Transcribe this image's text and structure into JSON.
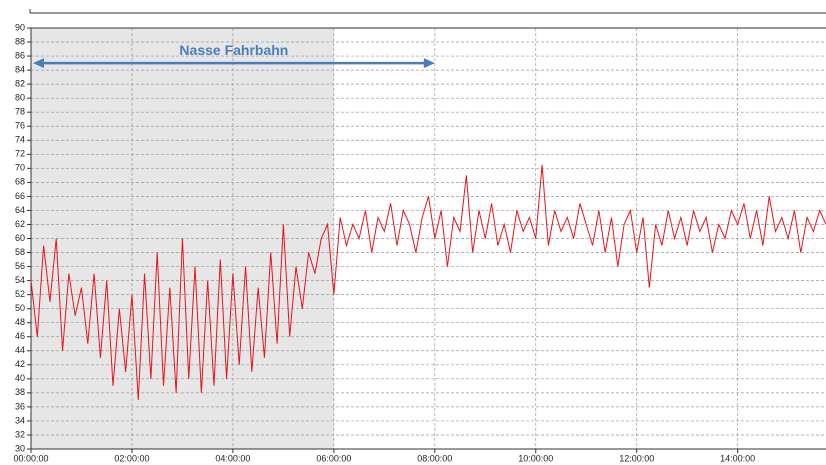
{
  "chart_data": {
    "type": "line",
    "x": [
      0,
      0.125,
      0.25,
      0.375,
      0.5,
      0.625,
      0.75,
      0.875,
      1,
      1.125,
      1.25,
      1.375,
      1.5,
      1.625,
      1.75,
      1.875,
      2,
      2.125,
      2.25,
      2.375,
      2.5,
      2.625,
      2.75,
      2.875,
      3,
      3.125,
      3.25,
      3.375,
      3.5,
      3.625,
      3.75,
      3.875,
      4,
      4.125,
      4.25,
      4.375,
      4.5,
      4.625,
      4.75,
      4.875,
      5,
      5.125,
      5.25,
      5.375,
      5.5,
      5.625,
      5.75,
      5.875,
      6,
      6.125,
      6.25,
      6.375,
      6.5,
      6.625,
      6.75,
      6.875,
      7,
      7.125,
      7.25,
      7.375,
      7.5,
      7.625,
      7.75,
      7.875,
      8,
      8.125,
      8.25,
      8.375,
      8.5,
      8.625,
      8.75,
      8.875,
      9,
      9.125,
      9.25,
      9.375,
      9.5,
      9.625,
      9.75,
      9.875,
      10,
      10.125,
      10.25,
      10.375,
      10.5,
      10.625,
      10.75,
      10.875,
      11,
      11.125,
      11.25,
      11.375,
      11.5,
      11.625,
      11.75,
      11.875,
      12,
      12.125,
      12.25,
      12.375,
      12.5,
      12.625,
      12.75,
      12.875,
      13,
      13.125,
      13.25,
      13.375,
      13.5,
      13.625,
      13.75,
      13.875,
      14,
      14.125,
      14.25,
      14.375,
      14.5,
      14.625,
      14.75,
      14.875,
      15,
      15.125,
      15.25,
      15.375,
      15.5,
      15.625,
      15.75
    ],
    "series": [
      {
        "color": "#e8141c",
        "values": [
          54,
          46,
          59,
          51,
          60,
          44,
          55,
          49,
          53,
          45,
          55,
          43,
          54,
          39,
          50,
          41,
          52,
          37,
          55,
          40,
          58,
          39,
          53,
          38,
          60,
          40,
          56,
          38,
          54,
          39,
          57,
          40,
          55,
          42,
          56,
          41,
          53,
          43,
          58,
          45,
          62,
          46,
          56,
          50,
          58,
          55,
          60,
          62,
          52,
          63,
          59,
          62,
          60,
          64,
          58,
          63,
          61,
          65,
          59,
          64,
          62,
          58,
          63,
          66,
          60,
          64,
          56,
          63,
          61,
          69,
          58,
          64,
          60,
          65,
          59,
          62,
          58,
          64,
          61,
          63,
          60,
          70.5,
          59,
          64,
          61,
          63,
          60,
          65,
          62,
          59,
          64,
          58,
          63,
          56,
          62,
          64,
          58,
          63,
          53,
          62,
          59,
          64,
          60,
          63,
          59,
          64,
          61,
          63,
          58,
          62,
          60,
          64,
          62,
          65,
          60,
          64,
          59,
          66,
          61,
          63,
          60,
          64,
          58,
          63,
          61,
          64,
          62
        ]
      }
    ],
    "xlim": [
      0,
      15.75
    ],
    "xticks": [
      {
        "value": 0,
        "label": "00:00:00"
      },
      {
        "value": 2,
        "label": "02:00:00"
      },
      {
        "value": 4,
        "label": "04:00:00"
      },
      {
        "value": 6,
        "label": "06:00:00"
      },
      {
        "value": 8,
        "label": "08:00:00"
      },
      {
        "value": 10,
        "label": "10:00:00"
      },
      {
        "value": 12,
        "label": "12:00:00"
      },
      {
        "value": 14,
        "label": "14:00:00"
      }
    ],
    "ylim": [
      30,
      90
    ],
    "yticks": [
      30,
      32,
      34,
      36,
      38,
      40,
      42,
      44,
      46,
      48,
      50,
      52,
      54,
      56,
      58,
      60,
      62,
      64,
      66,
      68,
      70,
      72,
      74,
      76,
      78,
      80,
      82,
      84,
      86,
      88,
      90
    ],
    "grid": true,
    "shaded_range": [
      0,
      6
    ],
    "annotation": {
      "text": "Nasse Fahrbahn",
      "x": [
        0,
        8
      ],
      "y": 85,
      "color": "#4a7ebb"
    }
  }
}
